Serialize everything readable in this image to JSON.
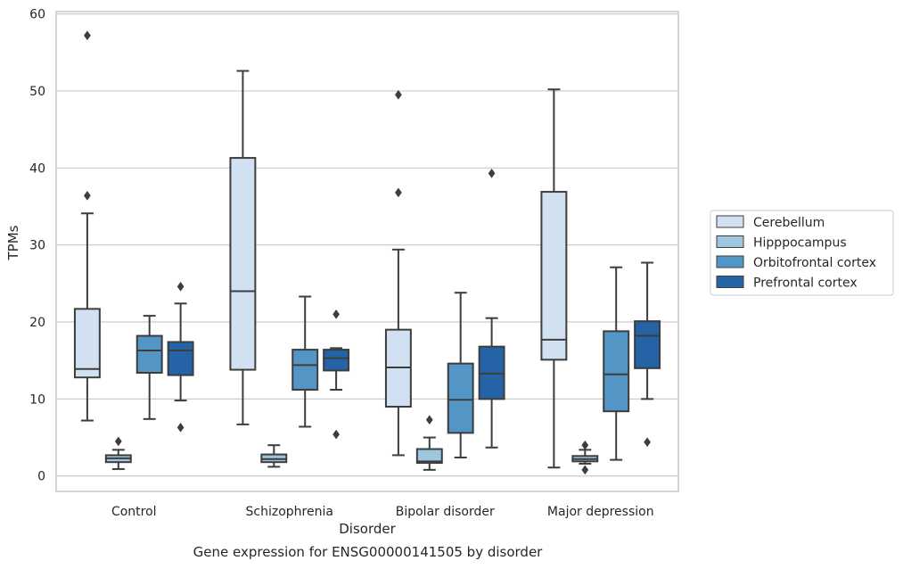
{
  "caption": "Gene expression for ENSG00000141505 by disorder",
  "colors": {
    "grid": "#cccccc",
    "frame": "#cccccc",
    "line": "#3d3d3d",
    "series": [
      "#d2e1f1",
      "#9dc7de",
      "#5396c6",
      "#2464a6"
    ]
  },
  "chart_data": {
    "type": "box",
    "xlabel": "Disorder",
    "ylabel": "TPMs",
    "ylim": [
      -2,
      60.3
    ],
    "yticks": [
      0,
      10,
      20,
      30,
      40,
      50,
      60
    ],
    "grid": true,
    "legend_position": "right",
    "categories": [
      "Control",
      "Schizophrenia",
      "Bipolar disorder",
      "Major depression"
    ],
    "series": [
      {
        "name": "Cerebellum",
        "boxes": [
          {
            "whislo": 7.2,
            "q1": 12.8,
            "med": 13.9,
            "q3": 21.7,
            "whishi": 34.1,
            "fliers": [
              36.4,
              57.2
            ]
          },
          {
            "whislo": 6.7,
            "q1": 13.8,
            "med": 24.0,
            "q3": 41.3,
            "whishi": 52.6,
            "fliers": []
          },
          {
            "whislo": 2.7,
            "q1": 9.0,
            "med": 14.1,
            "q3": 19.0,
            "whishi": 29.4,
            "fliers": [
              36.8,
              49.5
            ]
          },
          {
            "whislo": 1.1,
            "q1": 15.1,
            "med": 17.7,
            "q3": 36.9,
            "whishi": 50.2,
            "fliers": []
          }
        ]
      },
      {
        "name": "Hipppocampus",
        "boxes": [
          {
            "whislo": 0.9,
            "q1": 1.8,
            "med": 2.3,
            "q3": 2.7,
            "whishi": 3.4,
            "fliers": [
              4.5
            ]
          },
          {
            "whislo": 1.2,
            "q1": 1.8,
            "med": 2.2,
            "q3": 2.8,
            "whishi": 4.0,
            "fliers": []
          },
          {
            "whislo": 0.8,
            "q1": 1.7,
            "med": 1.9,
            "q3": 3.5,
            "whishi": 5.0,
            "fliers": [
              7.3
            ]
          },
          {
            "whislo": 1.6,
            "q1": 1.9,
            "med": 2.2,
            "q3": 2.6,
            "whishi": 3.4,
            "fliers": [
              0.8,
              4.0
            ]
          }
        ]
      },
      {
        "name": "Orbitofrontal cortex",
        "boxes": [
          {
            "whislo": 7.4,
            "q1": 13.4,
            "med": 16.3,
            "q3": 18.2,
            "whishi": 20.8,
            "fliers": []
          },
          {
            "whislo": 6.4,
            "q1": 11.2,
            "med": 14.4,
            "q3": 16.4,
            "whishi": 23.3,
            "fliers": []
          },
          {
            "whislo": 2.4,
            "q1": 5.6,
            "med": 9.9,
            "q3": 14.6,
            "whishi": 23.8,
            "fliers": []
          },
          {
            "whislo": 2.1,
            "q1": 8.4,
            "med": 13.2,
            "q3": 18.8,
            "whishi": 27.1,
            "fliers": []
          }
        ]
      },
      {
        "name": "Prefrontal cortex",
        "boxes": [
          {
            "whislo": 9.8,
            "q1": 13.1,
            "med": 16.3,
            "q3": 17.4,
            "whishi": 22.4,
            "fliers": [
              6.3,
              24.6
            ]
          },
          {
            "whislo": 11.2,
            "q1": 13.7,
            "med": 15.3,
            "q3": 16.4,
            "whishi": 16.6,
            "fliers": [
              5.4,
              21.0
            ]
          },
          {
            "whislo": 3.7,
            "q1": 10.0,
            "med": 13.3,
            "q3": 16.8,
            "whishi": 20.5,
            "fliers": [
              39.3
            ]
          },
          {
            "whislo": 10.0,
            "q1": 14.0,
            "med": 18.2,
            "q3": 20.1,
            "whishi": 27.7,
            "fliers": [
              4.4
            ]
          }
        ]
      }
    ]
  }
}
